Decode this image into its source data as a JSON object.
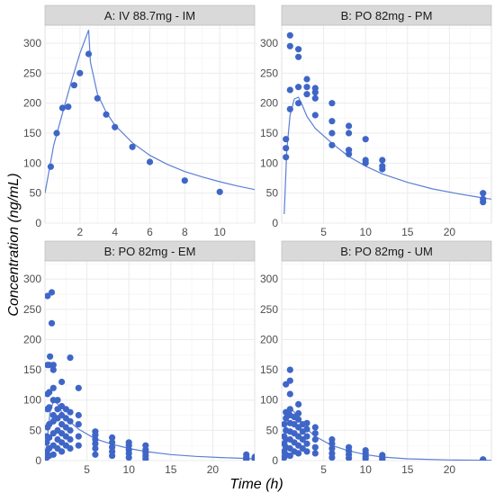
{
  "colors": {
    "point": "#3f66c7",
    "line": "#5b7fd6",
    "strip": "#d9d9d9",
    "grid": "#ebebeb",
    "axis_text": "#4d4d4d"
  },
  "chart_data": {
    "type": "scatter",
    "xlabel": "Time (h)",
    "ylabel": "Concentration (ng/mL)",
    "ylim": [
      0,
      330
    ],
    "y_ticks": [
      0,
      50,
      100,
      150,
      200,
      250,
      300
    ],
    "grid": true,
    "panels": [
      {
        "title": "A: IV 88.7mg - IM",
        "xlim": [
          0,
          12
        ],
        "x_ticks": [
          2,
          4,
          6,
          8,
          10
        ],
        "x_tick_labels": [
          "2",
          "4",
          "6",
          "8",
          "10"
        ],
        "points": [
          [
            0.33,
            94
          ],
          [
            0.67,
            150
          ],
          [
            1.0,
            192
          ],
          [
            1.33,
            194
          ],
          [
            1.67,
            230
          ],
          [
            2.0,
            250
          ],
          [
            2.5,
            282
          ],
          [
            3.0,
            208
          ],
          [
            3.5,
            181
          ],
          [
            4.0,
            160
          ],
          [
            5.0,
            127
          ],
          [
            6.0,
            102
          ],
          [
            8.0,
            71
          ],
          [
            10.0,
            52
          ]
        ],
        "fit": [
          [
            0,
            50
          ],
          [
            0.5,
            130
          ],
          [
            1.0,
            183
          ],
          [
            1.5,
            235
          ],
          [
            2.0,
            283
          ],
          [
            2.5,
            322
          ],
          [
            2.6,
            268
          ],
          [
            3.0,
            215
          ],
          [
            3.5,
            185
          ],
          [
            4.0,
            163
          ],
          [
            5.0,
            134
          ],
          [
            6.0,
            113
          ],
          [
            7.0,
            98
          ],
          [
            8.0,
            86
          ],
          [
            9.0,
            77
          ],
          [
            10.0,
            69
          ],
          [
            11.0,
            62
          ],
          [
            12.0,
            56
          ]
        ]
      },
      {
        "title": "B: PO 82mg - PM",
        "xlim": [
          0,
          25
        ],
        "x_ticks": [
          5,
          10,
          15,
          20
        ],
        "x_tick_labels": [
          "5",
          "10",
          "15",
          "20"
        ],
        "points": [
          [
            0.5,
            110
          ],
          [
            0.5,
            125
          ],
          [
            0.5,
            140
          ],
          [
            1,
            190
          ],
          [
            1,
            222
          ],
          [
            1,
            295
          ],
          [
            1,
            313
          ],
          [
            2,
            200
          ],
          [
            2,
            227
          ],
          [
            2,
            277
          ],
          [
            2,
            290
          ],
          [
            3,
            215
          ],
          [
            3,
            227
          ],
          [
            3,
            240
          ],
          [
            4,
            180
          ],
          [
            4,
            208
          ],
          [
            4,
            218
          ],
          [
            4,
            225
          ],
          [
            6,
            130
          ],
          [
            6,
            150
          ],
          [
            6,
            170
          ],
          [
            6,
            200
          ],
          [
            8,
            115
          ],
          [
            8,
            122
          ],
          [
            8,
            150
          ],
          [
            8,
            162
          ],
          [
            10,
            100
          ],
          [
            10,
            105
          ],
          [
            10,
            140
          ],
          [
            12,
            90
          ],
          [
            12,
            95
          ],
          [
            12,
            105
          ],
          [
            24,
            35
          ],
          [
            24,
            40
          ],
          [
            24,
            50
          ]
        ],
        "fit": [
          [
            0.3,
            15
          ],
          [
            0.6,
            120
          ],
          [
            1.0,
            180
          ],
          [
            1.5,
            207
          ],
          [
            2.0,
            210
          ],
          [
            2.5,
            195
          ],
          [
            3.0,
            178
          ],
          [
            4.0,
            158
          ],
          [
            6.0,
            133
          ],
          [
            8.0,
            111
          ],
          [
            10.0,
            95
          ],
          [
            12.0,
            82
          ],
          [
            15.0,
            68
          ],
          [
            18.0,
            57
          ],
          [
            21.0,
            49
          ],
          [
            24.0,
            42
          ],
          [
            25.0,
            40
          ]
        ]
      },
      {
        "title": "B: PO 82mg - EM",
        "xlim": [
          0,
          25
        ],
        "x_ticks": [
          5,
          10,
          15,
          20
        ],
        "x_tick_labels": [
          "5",
          "10",
          "15",
          "20"
        ],
        "points": [
          [
            0.2,
            5
          ],
          [
            0.2,
            15
          ],
          [
            0.2,
            30
          ],
          [
            0.2,
            40
          ],
          [
            0.3,
            55
          ],
          [
            0.3,
            85
          ],
          [
            0.3,
            110
          ],
          [
            0.3,
            158
          ],
          [
            0.3,
            272
          ],
          [
            0.5,
            8
          ],
          [
            0.5,
            20
          ],
          [
            0.5,
            38
          ],
          [
            0.5,
            60
          ],
          [
            0.5,
            88
          ],
          [
            0.5,
            113
          ],
          [
            0.5,
            158
          ],
          [
            0.6,
            172
          ],
          [
            0.8,
            227
          ],
          [
            0.8,
            278
          ],
          [
            1,
            10
          ],
          [
            1,
            25
          ],
          [
            1,
            45
          ],
          [
            1,
            65
          ],
          [
            1,
            75
          ],
          [
            1,
            100
          ],
          [
            1,
            120
          ],
          [
            1,
            150
          ],
          [
            1,
            158
          ],
          [
            1.5,
            20
          ],
          [
            1.5,
            35
          ],
          [
            1.5,
            50
          ],
          [
            1.5,
            70
          ],
          [
            1.5,
            85
          ],
          [
            1.5,
            100
          ],
          [
            2,
            15
          ],
          [
            2,
            30
          ],
          [
            2,
            45
          ],
          [
            2,
            60
          ],
          [
            2,
            75
          ],
          [
            2,
            90
          ],
          [
            2,
            130
          ],
          [
            2.5,
            25
          ],
          [
            2.5,
            40
          ],
          [
            2.5,
            55
          ],
          [
            2.5,
            70
          ],
          [
            2.5,
            85
          ],
          [
            3,
            20
          ],
          [
            3,
            35
          ],
          [
            3,
            50
          ],
          [
            3,
            65
          ],
          [
            3,
            80
          ],
          [
            3,
            170
          ],
          [
            4,
            25
          ],
          [
            4,
            40
          ],
          [
            4,
            60
          ],
          [
            4,
            75
          ],
          [
            4,
            120
          ],
          [
            6,
            10
          ],
          [
            6,
            20
          ],
          [
            6,
            28
          ],
          [
            6,
            35
          ],
          [
            6,
            42
          ],
          [
            6,
            48
          ],
          [
            8,
            8
          ],
          [
            8,
            15
          ],
          [
            8,
            22
          ],
          [
            8,
            30
          ],
          [
            8,
            38
          ],
          [
            10,
            5
          ],
          [
            10,
            12
          ],
          [
            10,
            18
          ],
          [
            10,
            25
          ],
          [
            10,
            30
          ],
          [
            12,
            3
          ],
          [
            12,
            8
          ],
          [
            12,
            13
          ],
          [
            12,
            18
          ],
          [
            12,
            25
          ],
          [
            24,
            2
          ],
          [
            24,
            4
          ],
          [
            24,
            6
          ],
          [
            24,
            10
          ],
          [
            25,
            3
          ],
          [
            25,
            6
          ]
        ],
        "fit": [
          [
            0,
            0
          ],
          [
            0.3,
            40
          ],
          [
            0.6,
            80
          ],
          [
            1.0,
            98
          ],
          [
            1.5,
            94
          ],
          [
            2.0,
            80
          ],
          [
            3.0,
            64
          ],
          [
            4.0,
            52
          ],
          [
            6.0,
            36
          ],
          [
            8.0,
            27
          ],
          [
            10.0,
            20
          ],
          [
            12.0,
            15
          ],
          [
            15.0,
            10
          ],
          [
            18.0,
            7
          ],
          [
            21.0,
            5
          ],
          [
            25.0,
            3
          ]
        ]
      },
      {
        "title": "B: PO 82mg - UM",
        "xlim": [
          0,
          25
        ],
        "x_ticks": [
          5,
          10,
          15,
          20
        ],
        "x_tick_labels": [
          "5",
          "10",
          "15",
          "20"
        ],
        "points": [
          [
            0.3,
            5
          ],
          [
            0.3,
            15
          ],
          [
            0.3,
            28
          ],
          [
            0.3,
            40
          ],
          [
            0.3,
            60
          ],
          [
            0.5,
            10
          ],
          [
            0.5,
            22
          ],
          [
            0.5,
            35
          ],
          [
            0.5,
            50
          ],
          [
            0.5,
            70
          ],
          [
            0.5,
            80
          ],
          [
            0.5,
            126
          ],
          [
            1,
            8
          ],
          [
            1,
            20
          ],
          [
            1,
            35
          ],
          [
            1,
            48
          ],
          [
            1,
            62
          ],
          [
            1,
            75
          ],
          [
            1,
            85
          ],
          [
            1,
            110
          ],
          [
            1,
            132
          ],
          [
            1,
            150
          ],
          [
            1.5,
            15
          ],
          [
            1.5,
            30
          ],
          [
            1.5,
            45
          ],
          [
            1.5,
            60
          ],
          [
            1.5,
            72
          ],
          [
            2,
            12
          ],
          [
            2,
            25
          ],
          [
            2,
            40
          ],
          [
            2,
            55
          ],
          [
            2,
            68
          ],
          [
            2,
            78
          ],
          [
            2,
            93
          ],
          [
            2.5,
            20
          ],
          [
            2.5,
            35
          ],
          [
            2.5,
            48
          ],
          [
            2.5,
            60
          ],
          [
            3,
            15
          ],
          [
            3,
            28
          ],
          [
            3,
            40
          ],
          [
            3,
            52
          ],
          [
            3,
            62
          ],
          [
            4,
            12
          ],
          [
            4,
            22
          ],
          [
            4,
            35
          ],
          [
            4,
            45
          ],
          [
            4,
            55
          ],
          [
            6,
            5
          ],
          [
            6,
            12
          ],
          [
            6,
            20
          ],
          [
            6,
            28
          ],
          [
            6,
            35
          ],
          [
            8,
            4
          ],
          [
            8,
            10
          ],
          [
            8,
            16
          ],
          [
            8,
            22
          ],
          [
            10,
            3
          ],
          [
            10,
            7
          ],
          [
            10,
            12
          ],
          [
            10,
            17
          ],
          [
            12,
            2
          ],
          [
            12,
            5
          ],
          [
            12,
            9
          ],
          [
            24,
            1
          ],
          [
            24,
            2
          ]
        ],
        "fit": [
          [
            0,
            0
          ],
          [
            0.3,
            35
          ],
          [
            0.6,
            70
          ],
          [
            1.0,
            88
          ],
          [
            1.5,
            80
          ],
          [
            2.0,
            68
          ],
          [
            3.0,
            52
          ],
          [
            4.0,
            40
          ],
          [
            6.0,
            25
          ],
          [
            8.0,
            16
          ],
          [
            10.0,
            10
          ],
          [
            12.0,
            6
          ],
          [
            15.0,
            3
          ],
          [
            20.0,
            1
          ],
          [
            25.0,
            0.5
          ]
        ]
      }
    ]
  }
}
